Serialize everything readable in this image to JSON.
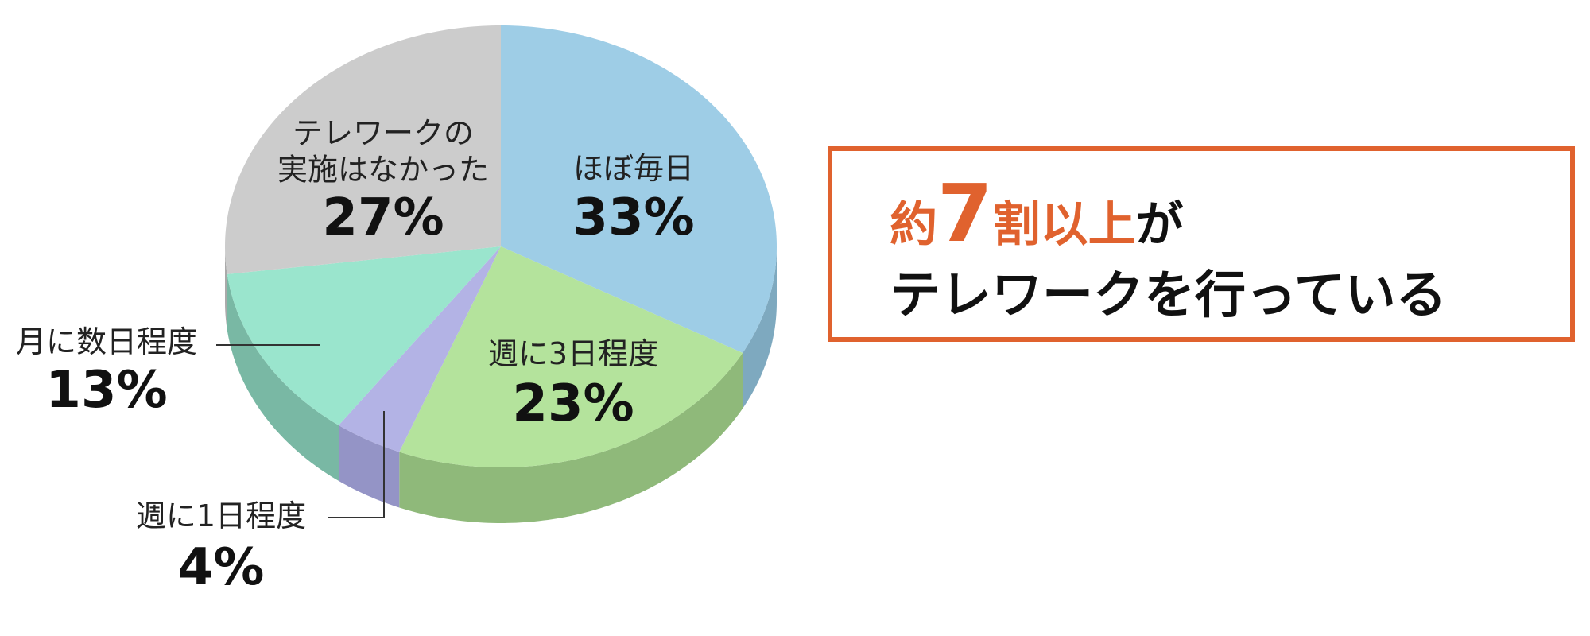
{
  "chart_data": {
    "type": "pie3d",
    "categories": [
      "ほぼ毎日",
      "週に3日程度",
      "週に1日程度",
      "月に数日程度",
      "テレワークの\n実施はなかった"
    ],
    "values": [
      33,
      23,
      4,
      13,
      27
    ],
    "value_labels": [
      "33%",
      "23%",
      "4%",
      "13%",
      "27%"
    ],
    "colors": [
      "#9ecde6",
      "#b4e39c",
      "#b3b3e5",
      "#9ae5cd",
      "#cccccc"
    ],
    "side_colors": [
      "#7ea9bf",
      "#8fb97a",
      "#9494c6",
      "#79b8a4",
      "#aaaaaa"
    ],
    "annotation": {
      "line1": [
        "約",
        "7",
        "割以上",
        "が"
      ],
      "line2": "テレワークを行っている"
    }
  }
}
